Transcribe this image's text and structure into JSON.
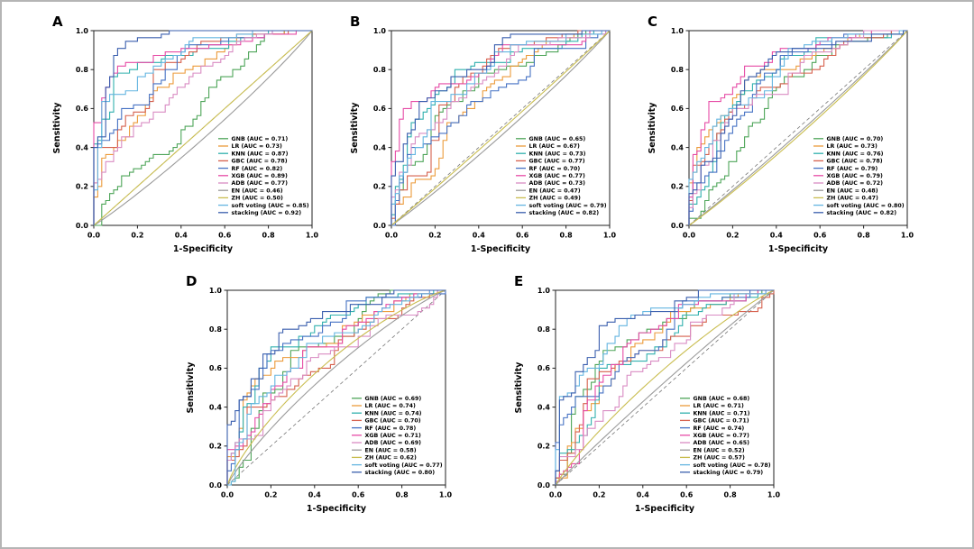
{
  "figure": {
    "background": "#ffffff",
    "border_color": "#b5b5b5",
    "panel_labels": [
      "A",
      "B",
      "C",
      "D",
      "E"
    ]
  },
  "palette": {
    "GNB": "#4ea559",
    "LR": "#ec9b3b",
    "KNN": "#31b0ae",
    "GBC": "#d6604d",
    "RF": "#4672c4",
    "XGB": "#e64ca6",
    "ADB": "#d98cc3",
    "EN": "#9a9a9a",
    "ZH": "#c9bd4f",
    "soft voting": "#64b5e0",
    "stacking": "#3a5fae"
  },
  "series_styles": {
    "EN": "smooth",
    "ZH": "smooth",
    "default": "step"
  },
  "chart_data": [
    {
      "type": "line",
      "chart": "ROC",
      "title": "A",
      "xlabel": "1-Specificity",
      "ylabel": "Sensitivity",
      "xlim": [
        0,
        1
      ],
      "ylim": [
        0,
        1
      ],
      "xticks": [
        0.0,
        0.2,
        0.4,
        0.6,
        0.8,
        1.0
      ],
      "yticks": [
        0.0,
        0.2,
        0.4,
        0.6,
        0.8,
        1.0
      ],
      "grid": false,
      "legend_position": "lower right",
      "diagonal_reference": true,
      "series": [
        {
          "name": "GNB",
          "auc": 0.71
        },
        {
          "name": "LR",
          "auc": 0.73
        },
        {
          "name": "KNN",
          "auc": 0.87
        },
        {
          "name": "GBC",
          "auc": 0.78
        },
        {
          "name": "RF",
          "auc": 0.82
        },
        {
          "name": "XGB",
          "auc": 0.89
        },
        {
          "name": "ADB",
          "auc": 0.77
        },
        {
          "name": "EN",
          "auc": 0.46
        },
        {
          "name": "ZH",
          "auc": 0.5
        },
        {
          "name": "soft voting",
          "auc": 0.85
        },
        {
          "name": "stacking",
          "auc": 0.92
        }
      ]
    },
    {
      "type": "line",
      "chart": "ROC",
      "title": "B",
      "xlabel": "1-Specificity",
      "ylabel": "Sensitivity",
      "xlim": [
        0,
        1
      ],
      "ylim": [
        0,
        1
      ],
      "xticks": [
        0.0,
        0.2,
        0.4,
        0.6,
        0.8,
        1.0
      ],
      "yticks": [
        0.0,
        0.2,
        0.4,
        0.6,
        0.8,
        1.0
      ],
      "grid": false,
      "legend_position": "lower right",
      "diagonal_reference": true,
      "series": [
        {
          "name": "GNB",
          "auc": 0.65
        },
        {
          "name": "LR",
          "auc": 0.67
        },
        {
          "name": "KNN",
          "auc": 0.73
        },
        {
          "name": "GBC",
          "auc": 0.77
        },
        {
          "name": "RF",
          "auc": 0.7
        },
        {
          "name": "XGB",
          "auc": 0.77
        },
        {
          "name": "ADB",
          "auc": 0.73
        },
        {
          "name": "EN",
          "auc": 0.47
        },
        {
          "name": "ZH",
          "auc": 0.49
        },
        {
          "name": "soft voting",
          "auc": 0.79
        },
        {
          "name": "stacking",
          "auc": 0.82
        }
      ]
    },
    {
      "type": "line",
      "chart": "ROC",
      "title": "C",
      "xlabel": "1-Specificity",
      "ylabel": "Sensitivity",
      "xlim": [
        0,
        1
      ],
      "ylim": [
        0,
        1
      ],
      "xticks": [
        0.0,
        0.2,
        0.4,
        0.6,
        0.8,
        1.0
      ],
      "yticks": [
        0.0,
        0.2,
        0.4,
        0.6,
        0.8,
        1.0
      ],
      "grid": false,
      "legend_position": "lower right",
      "diagonal_reference": true,
      "series": [
        {
          "name": "GNB",
          "auc": 0.7
        },
        {
          "name": "LR",
          "auc": 0.73
        },
        {
          "name": "KNN",
          "auc": 0.76
        },
        {
          "name": "GBC",
          "auc": 0.78
        },
        {
          "name": "RF",
          "auc": 0.79
        },
        {
          "name": "XGB",
          "auc": 0.79
        },
        {
          "name": "ADB",
          "auc": 0.72
        },
        {
          "name": "EN",
          "auc": 0.48
        },
        {
          "name": "ZH",
          "auc": 0.47
        },
        {
          "name": "soft voting",
          "auc": 0.8
        },
        {
          "name": "stacking",
          "auc": 0.82
        }
      ]
    },
    {
      "type": "line",
      "chart": "ROC",
      "title": "D",
      "xlabel": "1-Specificity",
      "ylabel": "Sensitivity",
      "xlim": [
        0,
        1
      ],
      "ylim": [
        0,
        1
      ],
      "xticks": [
        0.0,
        0.2,
        0.4,
        0.6,
        0.8,
        1.0
      ],
      "yticks": [
        0.0,
        0.2,
        0.4,
        0.6,
        0.8,
        1.0
      ],
      "grid": false,
      "legend_position": "lower right",
      "diagonal_reference": true,
      "series": [
        {
          "name": "GNB",
          "auc": 0.69
        },
        {
          "name": "LR",
          "auc": 0.74
        },
        {
          "name": "KNN",
          "auc": 0.74
        },
        {
          "name": "GBC",
          "auc": 0.7
        },
        {
          "name": "RF",
          "auc": 0.78
        },
        {
          "name": "XGB",
          "auc": 0.71
        },
        {
          "name": "ADB",
          "auc": 0.69
        },
        {
          "name": "EN",
          "auc": 0.58
        },
        {
          "name": "ZH",
          "auc": 0.62
        },
        {
          "name": "soft voting",
          "auc": 0.77
        },
        {
          "name": "stacking",
          "auc": 0.8
        }
      ]
    },
    {
      "type": "line",
      "chart": "ROC",
      "title": "E",
      "xlabel": "1-Specificity",
      "ylabel": "Sensitivity",
      "xlim": [
        0,
        1
      ],
      "ylim": [
        0,
        1
      ],
      "xticks": [
        0.0,
        0.2,
        0.4,
        0.6,
        0.8,
        1.0
      ],
      "yticks": [
        0.0,
        0.2,
        0.4,
        0.6,
        0.8,
        1.0
      ],
      "grid": false,
      "legend_position": "lower right",
      "diagonal_reference": true,
      "series": [
        {
          "name": "GNB",
          "auc": 0.68
        },
        {
          "name": "LR",
          "auc": 0.71
        },
        {
          "name": "KNN",
          "auc": 0.71
        },
        {
          "name": "GBC",
          "auc": 0.71
        },
        {
          "name": "RF",
          "auc": 0.74
        },
        {
          "name": "XGB",
          "auc": 0.77
        },
        {
          "name": "ADB",
          "auc": 0.65
        },
        {
          "name": "EN",
          "auc": 0.52
        },
        {
          "name": "ZH",
          "auc": 0.57
        },
        {
          "name": "soft voting",
          "auc": 0.78
        },
        {
          "name": "stacking",
          "auc": 0.79
        }
      ]
    }
  ]
}
